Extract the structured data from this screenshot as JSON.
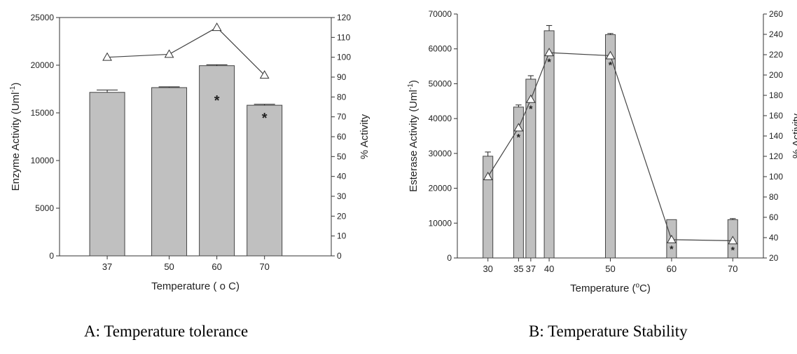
{
  "captions": {
    "a": "A: Temperature tolerance",
    "b": "B: Temperature Stability"
  },
  "chart_data": [
    {
      "type": "bar",
      "panel": "A",
      "xlabel": "Temperature ( o C)",
      "ylabel": "Enzyme Activity (Uml-1)",
      "ylabel_parts": [
        "Enzyme Activity (Uml",
        "-1",
        ")"
      ],
      "y2label": "% Activity",
      "x": [
        37,
        50,
        60,
        70
      ],
      "xlim": [
        27,
        84
      ],
      "ylim": [
        0,
        25000
      ],
      "y2lim": [
        0,
        120
      ],
      "yticks": [
        0,
        5000,
        10000,
        15000,
        20000,
        25000
      ],
      "y2ticks": [
        0,
        10,
        20,
        30,
        40,
        50,
        60,
        70,
        80,
        90,
        100,
        110,
        120
      ],
      "series": [
        {
          "kind": "bar",
          "axis": "left",
          "color": "#c0c0c0",
          "values": [
            17150,
            17650,
            19950,
            15800
          ],
          "errors": [
            250,
            80,
            100,
            100
          ]
        },
        {
          "kind": "line",
          "axis": "right",
          "marker": "open-triangle",
          "values": [
            100,
            101.5,
            115,
            91
          ]
        }
      ],
      "significance": [
        "",
        "",
        "*",
        "*"
      ]
    },
    {
      "type": "bar",
      "panel": "B",
      "xlabel": "Temperature (oC)",
      "xlabel_parts": [
        "Temperature (",
        "o",
        "C)"
      ],
      "ylabel": "Esterase Activity (Uml-1)",
      "ylabel_parts": [
        "Esterase Activity (Uml",
        "-1",
        ")"
      ],
      "y2label": "% Activity",
      "x": [
        30,
        35,
        37,
        40,
        50,
        60,
        70
      ],
      "xlim": [
        25,
        75
      ],
      "ylim": [
        0,
        70000
      ],
      "y2lim": [
        20,
        260
      ],
      "yticks": [
        0,
        10000,
        20000,
        30000,
        40000,
        50000,
        60000,
        70000
      ],
      "y2ticks": [
        20,
        40,
        60,
        80,
        100,
        120,
        140,
        160,
        180,
        200,
        220,
        240,
        260
      ],
      "series": [
        {
          "kind": "bar",
          "axis": "left",
          "color": "#c0c0c0",
          "values": [
            29200,
            43300,
            51300,
            65200,
            64100,
            11000,
            11000
          ],
          "errors": [
            1200,
            600,
            1000,
            1500,
            300,
            0,
            300
          ]
        },
        {
          "kind": "line",
          "axis": "right",
          "marker": "open-triangle",
          "values": [
            100,
            148,
            176,
            222,
            219,
            38,
            37
          ]
        }
      ],
      "significance": [
        "",
        "*",
        "*",
        "*",
        "*",
        "*",
        "*"
      ]
    }
  ]
}
